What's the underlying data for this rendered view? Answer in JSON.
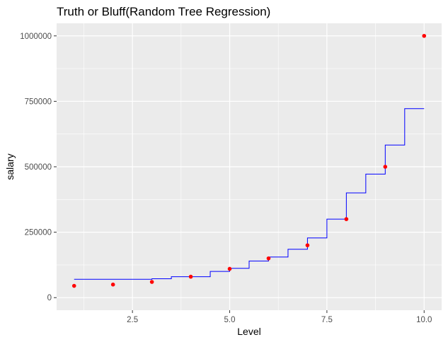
{
  "chart_data": {
    "type": "scatter",
    "title": "Truth or Bluff(Random Tree Regression)",
    "xlabel": "Level",
    "ylabel": "salary",
    "xlim": [
      0.55,
      10.45
    ],
    "ylim": [
      0,
      1000000
    ],
    "x_ticks": [
      2.5,
      5.0,
      7.5,
      10.0
    ],
    "x_tick_labels": [
      "2.5",
      "5.0",
      "7.5",
      "10.0"
    ],
    "y_ticks": [
      0,
      250000,
      500000,
      750000,
      1000000
    ],
    "y_tick_labels": [
      "0",
      "250000",
      "500000",
      "750000",
      "1000000"
    ],
    "grid": true,
    "colors": {
      "panel_background": "#ebebeb",
      "grid_line": "#ffffff",
      "points": "#ff0000",
      "line": "#0000ff"
    },
    "series": [
      {
        "type": "scatter",
        "x": [
          1,
          2,
          3,
          4,
          5,
          6,
          7,
          8,
          9,
          10
        ],
        "y": [
          45000,
          50000,
          60000,
          80000,
          110000,
          150000,
          200000,
          300000,
          500000,
          1000000
        ]
      },
      {
        "type": "step-line",
        "x": [
          1.0,
          3.0,
          3.0,
          3.5,
          3.5,
          4.5,
          4.5,
          5.0,
          5.0,
          5.5,
          5.5,
          6.0,
          6.0,
          6.5,
          6.5,
          7.0,
          7.0,
          7.5,
          7.5,
          8.0,
          8.0,
          8.5,
          8.5,
          9.0,
          9.0,
          9.5,
          9.5,
          10.0
        ],
        "y": [
          70000,
          70000,
          72000,
          72000,
          80000,
          80000,
          100000,
          100000,
          112000,
          112000,
          140000,
          140000,
          155000,
          155000,
          185000,
          185000,
          228000,
          228000,
          300000,
          300000,
          400000,
          400000,
          472000,
          472000,
          583000,
          583000,
          722000,
          722000
        ]
      }
    ]
  }
}
